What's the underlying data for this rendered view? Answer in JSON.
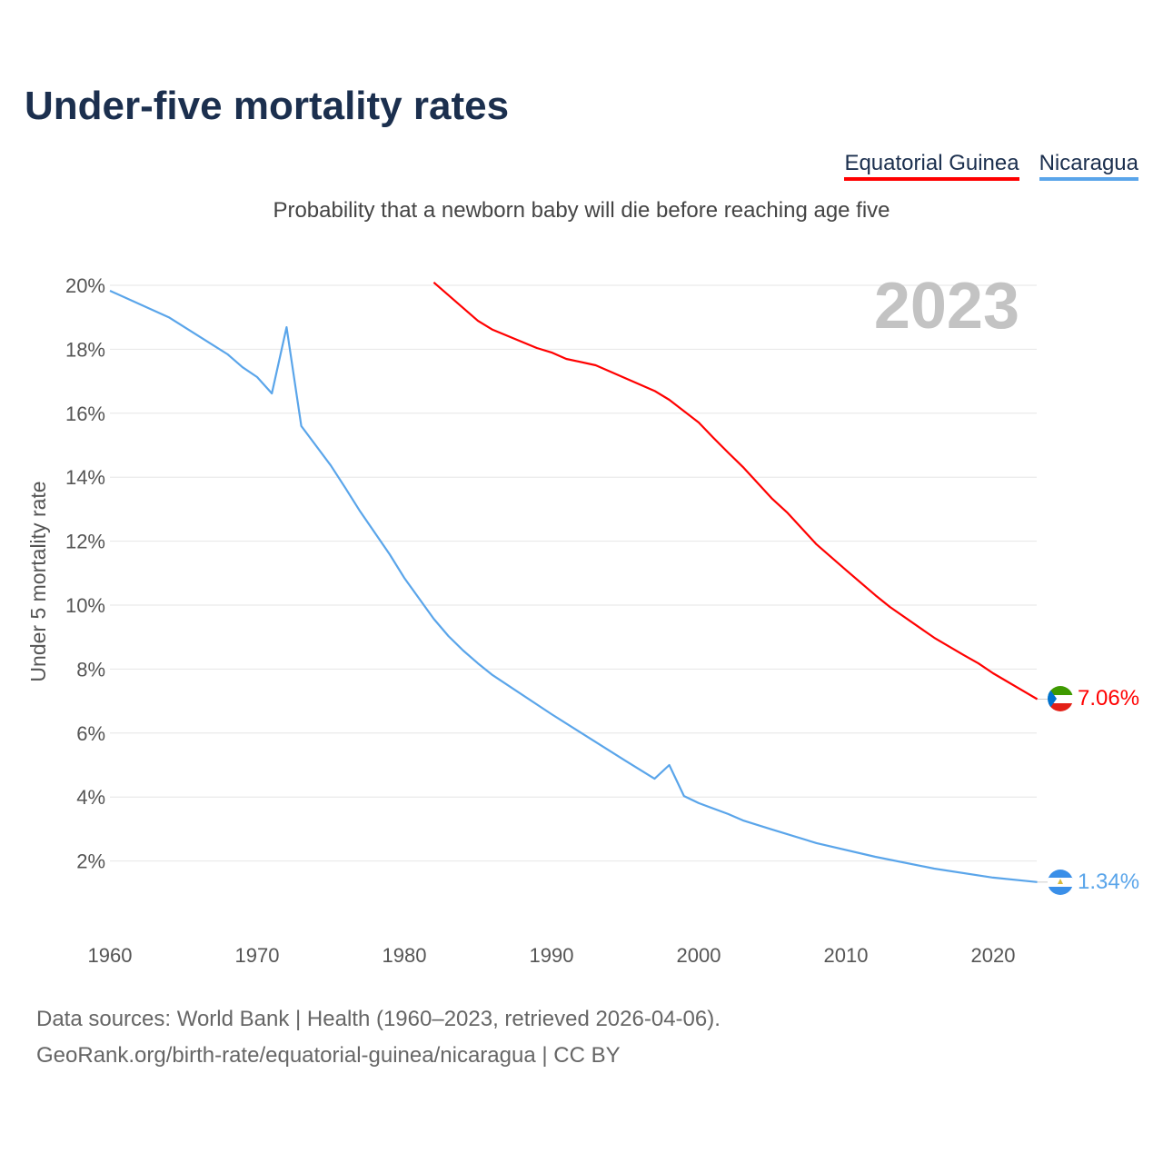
{
  "title": "Under-five mortality rates",
  "subtitle": "Probability that a newborn baby will die before reaching age five",
  "footer": {
    "line1": "Data sources: World Bank | Health (1960–2023, retrieved 2026-04-06).",
    "line2": "GeoRank.org/birth-rate/equatorial-guinea/nicaragua | CC BY"
  },
  "chart_data": {
    "type": "line",
    "title": "Under-five mortality rates",
    "ylabel": "Under 5 mortality rate",
    "xlabel": "",
    "year_label": "2023",
    "xlim": [
      1960,
      2023
    ],
    "ylim": [
      0,
      20.5
    ],
    "x_ticks": [
      "1960",
      "1970",
      "1980",
      "1990",
      "2000",
      "2010",
      "2020"
    ],
    "y_ticks": [
      "2%",
      "4%",
      "6%",
      "8%",
      "10%",
      "12%",
      "14%",
      "16%",
      "18%",
      "20%"
    ],
    "grid": true,
    "legend_position": "top-right",
    "series": [
      {
        "name": "Equatorial Guinea",
        "color": "#ff0000",
        "end_label": "7.06%",
        "points": [
          [
            1982,
            20.09
          ],
          [
            1985,
            18.89
          ],
          [
            1986,
            18.61
          ],
          [
            1989,
            18.04
          ],
          [
            1990,
            17.9
          ],
          [
            1991,
            17.7
          ],
          [
            1993,
            17.5
          ],
          [
            1995,
            17.1
          ],
          [
            1997,
            16.7
          ],
          [
            1998,
            16.42
          ],
          [
            2000,
            15.71
          ],
          [
            2001,
            15.23
          ],
          [
            2002,
            14.77
          ],
          [
            2003,
            14.32
          ],
          [
            2005,
            13.32
          ],
          [
            2006,
            12.9
          ],
          [
            2008,
            11.9
          ],
          [
            2010,
            11.1
          ],
          [
            2012,
            10.31
          ],
          [
            2013,
            9.94
          ],
          [
            2016,
            8.98
          ],
          [
            2018,
            8.44
          ],
          [
            2019,
            8.18
          ],
          [
            2020,
            7.87
          ],
          [
            2023,
            7.06
          ]
        ]
      },
      {
        "name": "Nicaragua",
        "color": "#5aa5ea",
        "end_label": "1.34%",
        "points": [
          [
            1960,
            19.83
          ],
          [
            1964,
            19.0
          ],
          [
            1968,
            17.84
          ],
          [
            1969,
            17.44
          ],
          [
            1970,
            17.13
          ],
          [
            1971,
            16.62
          ],
          [
            1972,
            18.69
          ],
          [
            1973,
            15.6
          ],
          [
            1975,
            14.37
          ],
          [
            1976,
            13.66
          ],
          [
            1977,
            12.93
          ],
          [
            1979,
            11.59
          ],
          [
            1980,
            10.85
          ],
          [
            1982,
            9.57
          ],
          [
            1983,
            9.03
          ],
          [
            1984,
            8.58
          ],
          [
            1985,
            8.18
          ],
          [
            1986,
            7.81
          ],
          [
            1990,
            6.59
          ],
          [
            1995,
            5.14
          ],
          [
            1997,
            4.57
          ],
          [
            1998,
            5.0
          ],
          [
            1999,
            4.03
          ],
          [
            2000,
            3.81
          ],
          [
            2002,
            3.47
          ],
          [
            2003,
            3.27
          ],
          [
            2005,
            2.98
          ],
          [
            2008,
            2.56
          ],
          [
            2012,
            2.13
          ],
          [
            2016,
            1.76
          ],
          [
            2020,
            1.48
          ],
          [
            2023,
            1.34
          ]
        ]
      }
    ]
  }
}
